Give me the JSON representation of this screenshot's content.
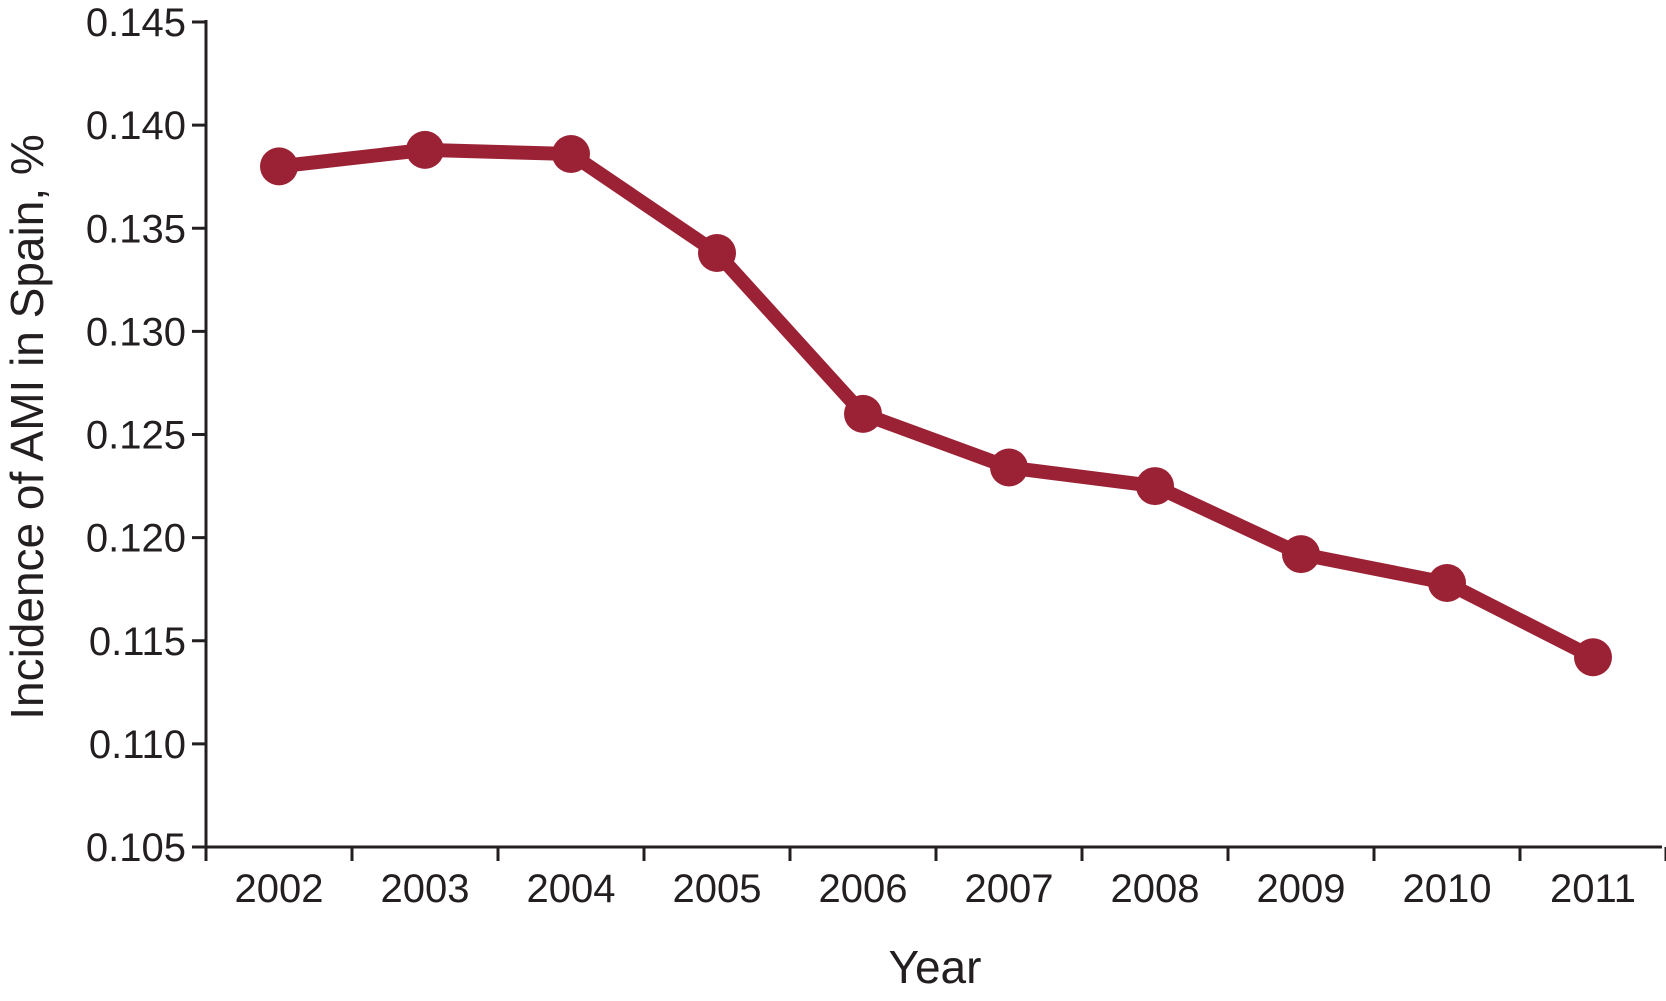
{
  "chart_data": {
    "type": "line",
    "title": "",
    "xlabel": "Year",
    "ylabel": "Incidence of AMI in Spain, %",
    "categories": [
      "2002",
      "2003",
      "2004",
      "2005",
      "2006",
      "2007",
      "2008",
      "2009",
      "2010",
      "2011"
    ],
    "series": [
      {
        "values": [
          0.138,
          0.1388,
          0.1386,
          0.1338,
          0.126,
          0.1234,
          0.1225,
          0.1192,
          0.1178,
          0.1142
        ],
        "color": "#9b2235"
      }
    ],
    "ylim": [
      0.105,
      0.145
    ],
    "yticks": [
      "0.105",
      "0.110",
      "0.115",
      "0.120",
      "0.125",
      "0.130",
      "0.135",
      "0.140",
      "0.145"
    ],
    "grid": false,
    "legend": "none"
  }
}
